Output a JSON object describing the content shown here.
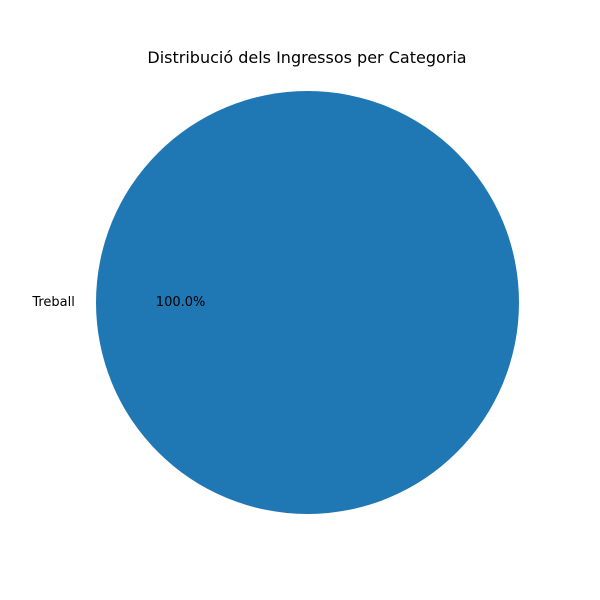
{
  "chart_data": {
    "type": "pie",
    "title": "Distribució dels Ingressos per Categoria",
    "categories": [
      "Treball"
    ],
    "values": [
      100
    ],
    "percent_labels": [
      "100.0%"
    ],
    "colors": [
      "#1f77b4"
    ],
    "legend": "none"
  }
}
